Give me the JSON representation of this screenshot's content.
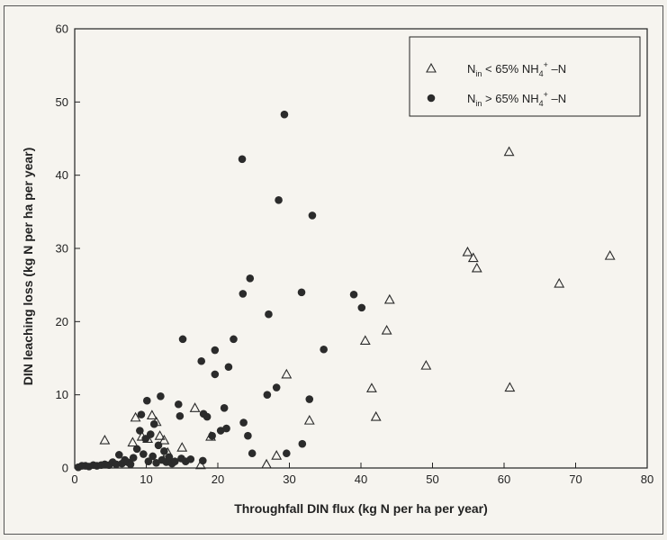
{
  "chart_data": {
    "type": "scatter",
    "xlabel": "Throughfall DIN flux (kg N per ha per year)",
    "ylabel": "DIN leaching loss (kg N per ha per year)",
    "xlim": [
      0,
      80
    ],
    "ylim": [
      0,
      60
    ],
    "x_ticks": [
      "0",
      "10",
      "20",
      "30",
      "40",
      "50",
      "60",
      "70",
      "80"
    ],
    "y_ticks": [
      "0",
      "10",
      "20",
      "30",
      "40",
      "50",
      "60"
    ],
    "grid": false,
    "legend_position": "top-right",
    "series": [
      {
        "marker": "open-triangle",
        "legend": {
          "prefix": "N",
          "sub": "in",
          "mid": " < 65% NH",
          "sub2": "4",
          "sup": "+",
          "suffix": " –N"
        },
        "points": [
          [
            4.2,
            3.8
          ],
          [
            8.1,
            3.5
          ],
          [
            8.5,
            6.9
          ],
          [
            9.4,
            4.3
          ],
          [
            10.2,
            4.0
          ],
          [
            10.8,
            7.2
          ],
          [
            11.4,
            6.3
          ],
          [
            11.9,
            4.4
          ],
          [
            12.5,
            3.8
          ],
          [
            13.0,
            2.1
          ],
          [
            15.0,
            2.8
          ],
          [
            16.8,
            8.2
          ],
          [
            17.6,
            0.4
          ],
          [
            19.0,
            4.3
          ],
          [
            26.8,
            0.5
          ],
          [
            28.2,
            1.7
          ],
          [
            29.6,
            12.8
          ],
          [
            32.8,
            6.5
          ],
          [
            40.6,
            17.4
          ],
          [
            41.5,
            10.9
          ],
          [
            42.1,
            7.0
          ],
          [
            43.6,
            18.8
          ],
          [
            44.0,
            23.0
          ],
          [
            49.1,
            14.0
          ],
          [
            54.9,
            29.5
          ],
          [
            55.7,
            28.7
          ],
          [
            56.2,
            27.3
          ],
          [
            60.7,
            43.2
          ],
          [
            60.8,
            11.0
          ],
          [
            67.7,
            25.2
          ],
          [
            74.8,
            29.0
          ]
        ]
      },
      {
        "marker": "filled-circle",
        "legend": {
          "prefix": "N",
          "sub": "in",
          "mid": " > 65% NH",
          "sub2": "4",
          "sup": "+",
          "suffix": " –N"
        },
        "points": [
          [
            0.5,
            0.1
          ],
          [
            1.0,
            0.3
          ],
          [
            1.5,
            0.3
          ],
          [
            2.0,
            0.2
          ],
          [
            2.6,
            0.4
          ],
          [
            3.1,
            0.3
          ],
          [
            3.7,
            0.4
          ],
          [
            4.2,
            0.5
          ],
          [
            4.8,
            0.4
          ],
          [
            5.3,
            0.8
          ],
          [
            5.8,
            0.5
          ],
          [
            6.2,
            1.8
          ],
          [
            6.6,
            0.6
          ],
          [
            7.0,
            1.1
          ],
          [
            7.4,
            0.8
          ],
          [
            7.8,
            0.5
          ],
          [
            8.2,
            1.4
          ],
          [
            8.7,
            2.6
          ],
          [
            9.1,
            5.1
          ],
          [
            9.3,
            7.3
          ],
          [
            9.6,
            1.9
          ],
          [
            9.9,
            4.0
          ],
          [
            10.1,
            9.2
          ],
          [
            10.3,
            0.9
          ],
          [
            10.6,
            4.6
          ],
          [
            10.9,
            1.6
          ],
          [
            11.1,
            6.0
          ],
          [
            11.4,
            0.7
          ],
          [
            11.7,
            3.1
          ],
          [
            12.0,
            9.8
          ],
          [
            12.2,
            1.1
          ],
          [
            12.5,
            2.3
          ],
          [
            12.8,
            0.8
          ],
          [
            13.2,
            1.5
          ],
          [
            13.6,
            0.6
          ],
          [
            14.0,
            0.9
          ],
          [
            14.5,
            8.7
          ],
          [
            14.7,
            7.1
          ],
          [
            14.9,
            1.3
          ],
          [
            15.1,
            17.6
          ],
          [
            15.5,
            0.9
          ],
          [
            16.2,
            1.2
          ],
          [
            17.7,
            14.6
          ],
          [
            18.0,
            7.4
          ],
          [
            17.9,
            1.0
          ],
          [
            18.5,
            7.0
          ],
          [
            19.2,
            4.4
          ],
          [
            19.6,
            12.8
          ],
          [
            19.6,
            16.1
          ],
          [
            20.4,
            5.1
          ],
          [
            20.9,
            8.2
          ],
          [
            21.2,
            5.4
          ],
          [
            21.5,
            13.8
          ],
          [
            22.2,
            17.6
          ],
          [
            23.4,
            42.2
          ],
          [
            23.5,
            23.8
          ],
          [
            23.6,
            6.2
          ],
          [
            24.2,
            4.4
          ],
          [
            24.5,
            25.9
          ],
          [
            24.8,
            2.0
          ],
          [
            26.9,
            10.0
          ],
          [
            27.1,
            21.0
          ],
          [
            28.2,
            11.0
          ],
          [
            28.5,
            36.6
          ],
          [
            29.3,
            48.3
          ],
          [
            29.6,
            2.0
          ],
          [
            31.7,
            24.0
          ],
          [
            31.8,
            3.3
          ],
          [
            32.8,
            9.4
          ],
          [
            33.2,
            34.5
          ],
          [
            34.8,
            16.2
          ],
          [
            39.0,
            23.7
          ],
          [
            40.1,
            21.9
          ]
        ]
      }
    ]
  }
}
